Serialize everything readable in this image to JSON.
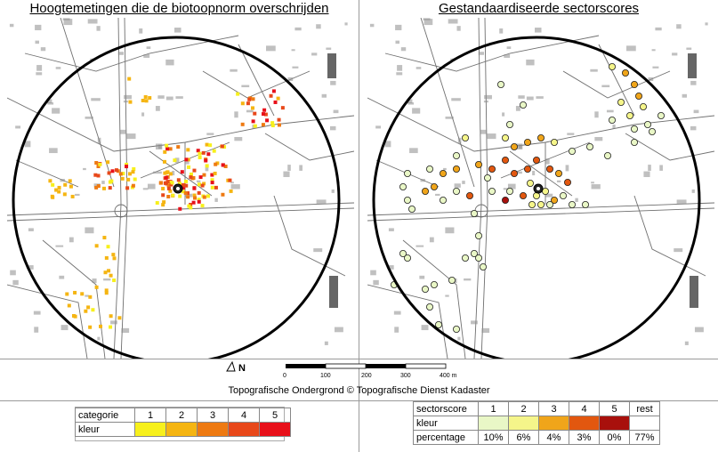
{
  "left_title": "Hoogtemetingen die de biotoopnorm overschrijden",
  "right_title": "Gestandaardiseerde sectorscores",
  "north_label": "N",
  "scale": {
    "ticks": [
      "0",
      "100",
      "200",
      "300",
      "400 m"
    ]
  },
  "credit": "Topografische Ondergrond © Topografische Dienst Kadaster",
  "legend_left": {
    "header_label": "categorie",
    "color_label": "kleur",
    "categories": [
      "1",
      "2",
      "3",
      "4",
      "5"
    ],
    "colors": [
      "#f7f01c",
      "#f5b512",
      "#ee7a12",
      "#e8481a",
      "#e8101a"
    ]
  },
  "legend_right": {
    "header_label": "sectorscore",
    "color_label": "kleur",
    "percentage_label": "percentage",
    "scores": [
      "1",
      "2",
      "3",
      "4",
      "5",
      "rest"
    ],
    "colors": [
      "#e9f7c6",
      "#f5f58a",
      "#f0a51a",
      "#e2570f",
      "#a8100c",
      "#ffffff"
    ],
    "percentages": [
      "10%",
      "6%",
      "4%",
      "3%",
      "0%",
      "77%"
    ]
  },
  "colors": {
    "circle": "#000000",
    "streets": "#6f6f6f",
    "buildings": "#8c8c8c"
  }
}
